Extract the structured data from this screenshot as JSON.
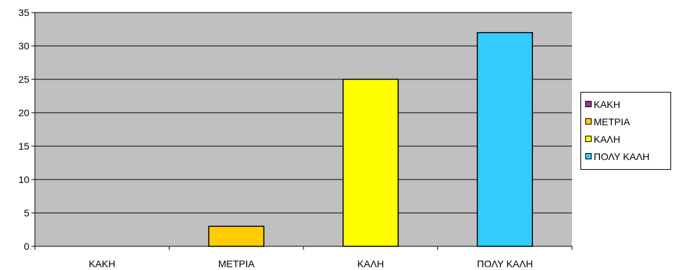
{
  "chart_data": {
    "type": "bar",
    "title": "",
    "xlabel": "",
    "ylabel": "",
    "categories": [
      "ΚΑΚΗ",
      "ΜΕΤΡΙΑ",
      "ΚΑΛΗ",
      "ΠΟΛΥ ΚΑΛΗ"
    ],
    "values": [
      0,
      3,
      25,
      32
    ],
    "ylim": [
      0,
      35
    ],
    "yticks": [
      0,
      5,
      10,
      15,
      20,
      25,
      30,
      35
    ],
    "grid": true,
    "plot_background": "#c0c0c0",
    "bar_colors": [
      "#993399",
      "#ffcc00",
      "#ffff00",
      "#33ccff"
    ],
    "legend": {
      "placement": "right",
      "items": [
        {
          "label": "ΚΑΚΗ",
          "color": "#993399"
        },
        {
          "label": "ΜΕΤΡΙΑ",
          "color": "#ffcc00"
        },
        {
          "label": "ΚΑΛΗ",
          "color": "#ffff00"
        },
        {
          "label": "ΠΟΛΥ ΚΑΛΗ",
          "color": "#33ccff"
        }
      ]
    }
  }
}
